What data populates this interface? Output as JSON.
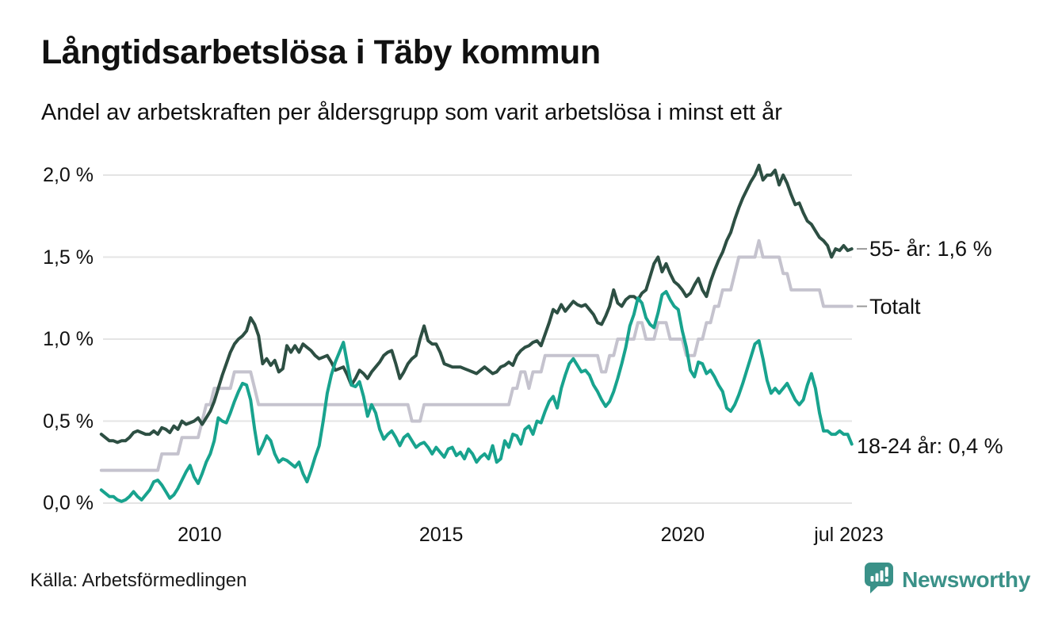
{
  "header": {
    "title": "Långtidsarbetslösa i Täby kommun",
    "subtitle": "Andel av arbetskraften per åldersgrupp som varit arbetslösa i minst ett år"
  },
  "footer": {
    "source": "Källa: Arbetsförmedlingen",
    "brand_name": "Newsworthy",
    "brand_icon": "newsworthy-speech-bubble-bar-chart-icon"
  },
  "colors": {
    "age55": "#2d4f43",
    "total": "#c5c3ce",
    "age1824": "#18a38e",
    "grid": "#e4e4e4",
    "leader": "#9a9a9a",
    "text": "#111111",
    "brand": "#3a9188"
  },
  "chart_data": {
    "type": "line",
    "title": "Långtidsarbetslösa i Täby kommun",
    "subtitle": "Andel av arbetskraften per åldersgrupp som varit arbetslösa i minst ett år",
    "x_unit": "month",
    "x_start": "jan 2008",
    "x_end": "jul 2023",
    "ylim": [
      0.0,
      2.1
    ],
    "grid": "horizontal-only",
    "legend_position": "right-end-labels",
    "y_ticks": [
      {
        "label": "0,0 %",
        "v": 0.0
      },
      {
        "label": "0,5 %",
        "v": 0.5
      },
      {
        "label": "1,0 %",
        "v": 1.0
      },
      {
        "label": "1,5 %",
        "v": 1.5
      },
      {
        "label": "2,0 %",
        "v": 2.0
      }
    ],
    "x_ticks": [
      {
        "label": "2010",
        "t": 2010.0
      },
      {
        "label": "2015",
        "t": 2015.0
      },
      {
        "label": "2020",
        "t": 2020.0
      },
      {
        "label": "jul 2023",
        "t": 2023.5
      }
    ],
    "series": [
      {
        "key": "totalt",
        "name": "Totalt",
        "end_label": "Totalt",
        "leader_tick": true,
        "color_key": "total",
        "values": [
          0.2,
          0.2,
          0.2,
          0.2,
          0.2,
          0.2,
          0.2,
          0.2,
          0.2,
          0.2,
          0.2,
          0.2,
          0.2,
          0.2,
          0.2,
          0.3,
          0.3,
          0.3,
          0.3,
          0.3,
          0.4,
          0.4,
          0.4,
          0.4,
          0.4,
          0.5,
          0.6,
          0.6,
          0.7,
          0.7,
          0.7,
          0.7,
          0.7,
          0.8,
          0.8,
          0.8,
          0.8,
          0.8,
          0.7,
          0.6,
          0.6,
          0.6,
          0.6,
          0.6,
          0.6,
          0.6,
          0.6,
          0.6,
          0.6,
          0.6,
          0.6,
          0.6,
          0.6,
          0.6,
          0.6,
          0.6,
          0.6,
          0.6,
          0.6,
          0.6,
          0.6,
          0.6,
          0.6,
          0.6,
          0.6,
          0.6,
          0.6,
          0.6,
          0.6,
          0.6,
          0.6,
          0.6,
          0.6,
          0.6,
          0.6,
          0.6,
          0.6,
          0.5,
          0.5,
          0.5,
          0.6,
          0.6,
          0.6,
          0.6,
          0.6,
          0.6,
          0.6,
          0.6,
          0.6,
          0.6,
          0.6,
          0.6,
          0.6,
          0.6,
          0.6,
          0.6,
          0.6,
          0.6,
          0.6,
          0.6,
          0.6,
          0.6,
          0.7,
          0.7,
          0.8,
          0.8,
          0.7,
          0.8,
          0.8,
          0.8,
          0.9,
          0.9,
          0.9,
          0.9,
          0.9,
          0.9,
          0.9,
          0.9,
          0.9,
          0.9,
          0.9,
          0.9,
          0.9,
          0.9,
          0.8,
          0.8,
          0.9,
          0.9,
          1.0,
          1.0,
          1.0,
          1.0,
          1.0,
          1.1,
          1.1,
          1.0,
          1.0,
          1.0,
          1.1,
          1.1,
          1.1,
          1.0,
          1.0,
          1.0,
          1.0,
          0.9,
          0.9,
          0.9,
          1.0,
          1.0,
          1.1,
          1.1,
          1.2,
          1.2,
          1.3,
          1.3,
          1.3,
          1.4,
          1.5,
          1.5,
          1.5,
          1.5,
          1.5,
          1.6,
          1.5,
          1.5,
          1.5,
          1.5,
          1.5,
          1.4,
          1.4,
          1.3,
          1.3,
          1.3,
          1.3,
          1.3,
          1.3,
          1.3,
          1.3,
          1.2,
          1.2,
          1.2,
          1.2,
          1.2,
          1.2,
          1.2,
          1.2
        ]
      },
      {
        "key": "55-ar",
        "name": "55- år",
        "end_label": "55- år: 1,6 %",
        "leader_tick": true,
        "color_key": "age55",
        "values": [
          0.42,
          0.4,
          0.38,
          0.38,
          0.37,
          0.38,
          0.38,
          0.4,
          0.43,
          0.44,
          0.43,
          0.42,
          0.42,
          0.44,
          0.42,
          0.46,
          0.45,
          0.43,
          0.47,
          0.45,
          0.5,
          0.48,
          0.49,
          0.5,
          0.52,
          0.48,
          0.52,
          0.56,
          0.62,
          0.7,
          0.78,
          0.85,
          0.92,
          0.97,
          1.0,
          1.02,
          1.05,
          1.13,
          1.09,
          1.02,
          0.85,
          0.88,
          0.84,
          0.87,
          0.8,
          0.82,
          0.96,
          0.92,
          0.96,
          0.92,
          0.97,
          0.95,
          0.93,
          0.9,
          0.88,
          0.89,
          0.9,
          0.86,
          0.81,
          0.82,
          0.83,
          0.78,
          0.72,
          0.76,
          0.81,
          0.79,
          0.76,
          0.8,
          0.83,
          0.86,
          0.9,
          0.92,
          0.93,
          0.85,
          0.76,
          0.8,
          0.85,
          0.88,
          0.9,
          1.0,
          1.08,
          0.99,
          0.97,
          0.97,
          0.92,
          0.85,
          0.84,
          0.83,
          0.83,
          0.83,
          0.82,
          0.81,
          0.8,
          0.79,
          0.81,
          0.83,
          0.81,
          0.79,
          0.8,
          0.83,
          0.84,
          0.86,
          0.84,
          0.9,
          0.93,
          0.95,
          0.96,
          0.98,
          0.99,
          0.96,
          1.03,
          1.1,
          1.18,
          1.16,
          1.21,
          1.17,
          1.2,
          1.23,
          1.21,
          1.2,
          1.21,
          1.18,
          1.15,
          1.1,
          1.09,
          1.14,
          1.2,
          1.3,
          1.22,
          1.2,
          1.24,
          1.26,
          1.26,
          1.24,
          1.28,
          1.3,
          1.38,
          1.46,
          1.5,
          1.41,
          1.46,
          1.4,
          1.35,
          1.33,
          1.3,
          1.26,
          1.28,
          1.33,
          1.37,
          1.3,
          1.26,
          1.35,
          1.42,
          1.48,
          1.53,
          1.6,
          1.65,
          1.73,
          1.8,
          1.86,
          1.91,
          1.96,
          2.0,
          2.06,
          1.97,
          2.0,
          2.0,
          2.03,
          1.94,
          2.0,
          1.95,
          1.88,
          1.82,
          1.83,
          1.77,
          1.72,
          1.7,
          1.66,
          1.62,
          1.6,
          1.57,
          1.5,
          1.55,
          1.54,
          1.57,
          1.54,
          1.55
        ]
      },
      {
        "key": "18-24-ar",
        "name": "18-24 år",
        "end_label": "18-24 år: 0,4 %",
        "leader_tick": false,
        "color_key": "age1824",
        "values": [
          0.08,
          0.06,
          0.04,
          0.04,
          0.02,
          0.01,
          0.02,
          0.04,
          0.07,
          0.04,
          0.02,
          0.05,
          0.08,
          0.13,
          0.14,
          0.11,
          0.07,
          0.03,
          0.05,
          0.09,
          0.14,
          0.19,
          0.23,
          0.16,
          0.12,
          0.18,
          0.25,
          0.3,
          0.38,
          0.52,
          0.5,
          0.49,
          0.55,
          0.62,
          0.68,
          0.73,
          0.72,
          0.63,
          0.45,
          0.3,
          0.35,
          0.41,
          0.38,
          0.3,
          0.25,
          0.27,
          0.26,
          0.24,
          0.22,
          0.25,
          0.18,
          0.13,
          0.2,
          0.28,
          0.35,
          0.5,
          0.67,
          0.78,
          0.86,
          0.92,
          0.98,
          0.85,
          0.72,
          0.71,
          0.74,
          0.65,
          0.53,
          0.6,
          0.55,
          0.45,
          0.39,
          0.42,
          0.44,
          0.4,
          0.35,
          0.4,
          0.42,
          0.38,
          0.34,
          0.36,
          0.37,
          0.34,
          0.3,
          0.34,
          0.31,
          0.28,
          0.33,
          0.34,
          0.29,
          0.31,
          0.27,
          0.33,
          0.3,
          0.25,
          0.28,
          0.3,
          0.27,
          0.35,
          0.25,
          0.27,
          0.38,
          0.34,
          0.42,
          0.41,
          0.36,
          0.45,
          0.47,
          0.42,
          0.5,
          0.49,
          0.56,
          0.62,
          0.65,
          0.58,
          0.7,
          0.78,
          0.85,
          0.88,
          0.84,
          0.8,
          0.81,
          0.78,
          0.72,
          0.68,
          0.63,
          0.59,
          0.62,
          0.68,
          0.76,
          0.85,
          0.95,
          1.08,
          1.15,
          1.25,
          1.22,
          1.13,
          1.09,
          1.07,
          1.16,
          1.27,
          1.29,
          1.24,
          1.2,
          1.18,
          1.05,
          0.95,
          0.81,
          0.77,
          0.86,
          0.85,
          0.79,
          0.81,
          0.77,
          0.72,
          0.68,
          0.58,
          0.56,
          0.6,
          0.66,
          0.73,
          0.81,
          0.89,
          0.97,
          0.99,
          0.88,
          0.75,
          0.67,
          0.7,
          0.67,
          0.7,
          0.73,
          0.68,
          0.63,
          0.6,
          0.63,
          0.72,
          0.79,
          0.7,
          0.55,
          0.44,
          0.44,
          0.42,
          0.42,
          0.44,
          0.42,
          0.42,
          0.36
        ]
      }
    ]
  }
}
